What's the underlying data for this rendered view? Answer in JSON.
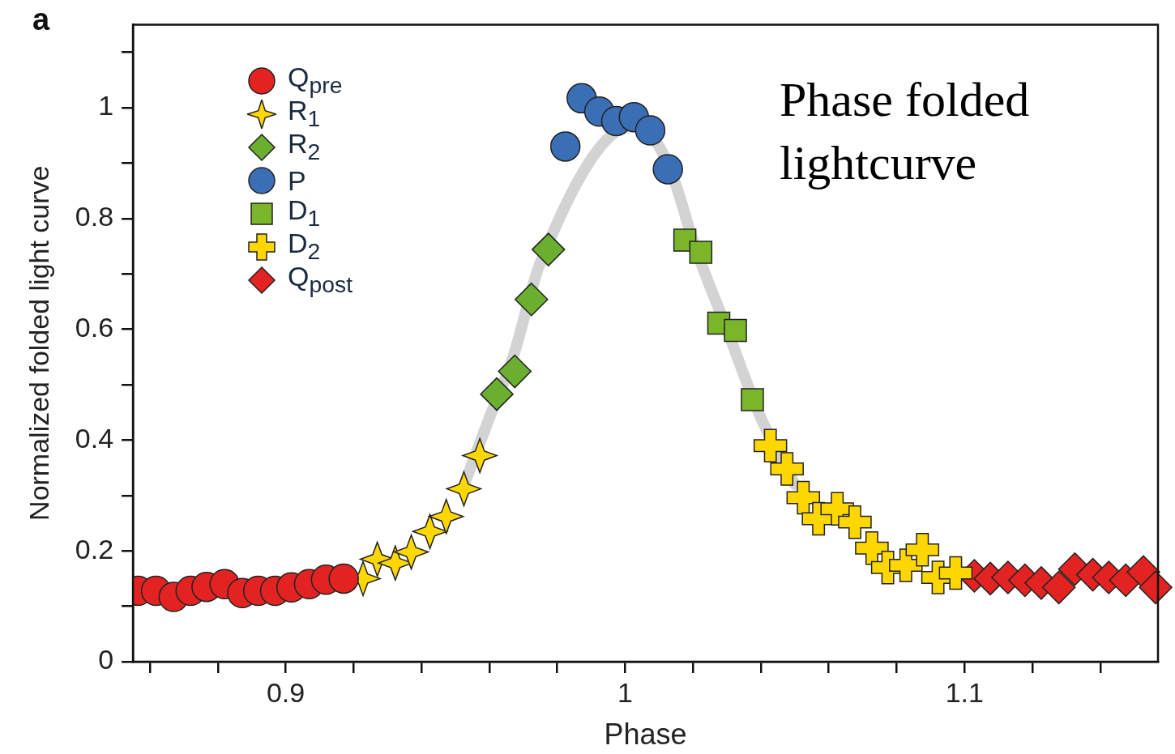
{
  "chart_data": {
    "type": "scatter",
    "xlabel": "Phase",
    "ylabel": "Normalized folded light curve",
    "title": "Phase folded lightcurve",
    "annotations": [
      "a"
    ],
    "xlim": [
      0.855,
      1.157
    ],
    "ylim": [
      0,
      1.15
    ],
    "xticks": [
      {
        "value": 0.86,
        "label": null
      },
      {
        "value": 0.88,
        "label": null
      },
      0.9,
      {
        "value": 0.92,
        "label": null
      },
      {
        "value": 0.94,
        "label": null
      },
      {
        "value": 0.96,
        "label": null
      },
      {
        "value": 0.98,
        "label": null
      },
      1,
      {
        "value": 1.02,
        "label": null
      },
      {
        "value": 1.04,
        "label": null
      },
      {
        "value": 1.06,
        "label": null
      },
      {
        "value": 1.08,
        "label": null
      },
      1.1,
      {
        "value": 1.12,
        "label": null
      },
      {
        "value": 1.14,
        "label": null
      }
    ],
    "yticks": [
      0,
      {
        "value": 0.1,
        "label": null
      },
      0.2,
      {
        "value": 0.3,
        "label": null
      },
      0.4,
      {
        "value": 0.5,
        "label": null
      },
      0.6,
      {
        "value": 0.7,
        "label": null
      },
      0.8,
      {
        "value": 0.9,
        "label": null
      },
      1,
      {
        "value": 1.1,
        "label": null
      }
    ],
    "legend": "top left",
    "series": [
      {
        "type": "line",
        "color": "#d3d3d3",
        "marker": "none",
        "x": [
          0.952,
          0.96,
          0.967,
          0.975,
          0.982,
          0.987,
          0.995,
          1.003,
          1.01,
          1.015,
          1.02,
          1.03,
          1.04,
          1.05
        ],
        "values": [
          0.31,
          0.44,
          0.55,
          0.72,
          null,
          null,
          null,
          0.97,
          0.93,
          0.86,
          0.76,
          0.6,
          0.44,
          0.32
        ]
      },
      {
        "name": "Q$_{pre}$",
        "color": "#e32322",
        "marker": "circle",
        "x": [
          0.8565,
          0.8618,
          0.867,
          0.872,
          0.8767,
          0.882,
          0.8872,
          0.8919,
          0.8969,
          0.9017,
          0.9069,
          0.9119,
          0.9171
        ],
        "values": [
          0.128,
          0.128,
          0.117,
          0.128,
          0.135,
          0.14,
          0.124,
          0.128,
          0.128,
          0.134,
          0.14,
          0.148,
          0.15
        ]
      },
      {
        "name": "R$_{1}$",
        "color": "#ffd700",
        "marker": "star",
        "x": [
          0.9228,
          0.927,
          0.9323,
          0.937,
          0.9425,
          0.9473,
          0.9525,
          0.9572
        ],
        "values": [
          0.15,
          0.185,
          0.178,
          0.198,
          0.235,
          0.262,
          0.312,
          0.372
        ]
      },
      {
        "name": "R$_{2}$",
        "color": "#6aaf2f",
        "marker": "diamond",
        "x": [
          0.9622,
          0.9675,
          0.9724,
          0.9774
        ],
        "values": [
          0.483,
          0.524,
          0.654,
          0.744
        ]
      },
      {
        "name": "P",
        "color": "#3a6eb5",
        "marker": "circle",
        "x": [
          0.9824,
          0.9872,
          0.9924,
          0.9974,
          1.0026,
          1.0074,
          1.0126
        ],
        "values": [
          0.93,
          1.017,
          0.993,
          0.976,
          0.983,
          0.959,
          0.889
        ]
      },
      {
        "name": "D$_{1}$",
        "color": "#7ab52a",
        "marker": "square",
        "x": [
          1.0176,
          1.0223,
          1.0276,
          1.0325,
          1.0375
        ],
        "values": [
          0.761,
          0.739,
          0.611,
          0.598,
          0.473
        ]
      },
      {
        "name": "D$_{2}$",
        "color": "#ffd700",
        "marker": "cross",
        "x": [
          1.0428,
          1.0477,
          1.0525,
          1.057,
          1.0625,
          1.0677,
          1.0727,
          1.0774,
          1.0827,
          1.0876,
          1.0922,
          1.0974
        ],
        "values": [
          0.39,
          0.348,
          0.296,
          0.258,
          0.276,
          0.252,
          0.205,
          0.17,
          0.174,
          0.202,
          0.152,
          0.16
        ]
      },
      {
        "name": "Q$_{post}$",
        "color": "#e32322",
        "marker": "diamond",
        "x": [
          1.1029,
          1.1076,
          1.1128,
          1.1178,
          1.1226,
          1.1278,
          1.1325,
          1.1378,
          1.1425,
          1.1475,
          1.1527,
          1.1563
        ],
        "values": [
          0.155,
          0.15,
          0.152,
          0.147,
          0.142,
          0.134,
          0.167,
          0.157,
          0.152,
          0.147,
          0.162,
          0.134
        ]
      }
    ]
  }
}
